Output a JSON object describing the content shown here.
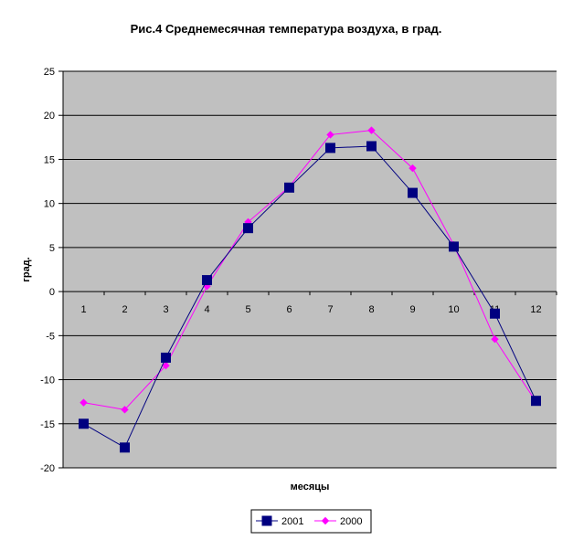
{
  "chart_data": {
    "type": "line",
    "title": "Рис.4 Среднемесячная температура воздуха, в град.",
    "xlabel": "месяцы",
    "ylabel": "град.",
    "ylim": [
      -20,
      25
    ],
    "yticks": [
      "25",
      "20",
      "15",
      "10",
      "5",
      "0",
      "-5",
      "-10",
      "-15",
      "-20"
    ],
    "categories": [
      "1",
      "2",
      "3",
      "4",
      "5",
      "6",
      "7",
      "8",
      "9",
      "10",
      "11",
      "12"
    ],
    "grid": true,
    "legend_position": "bottom",
    "plot_background": "#c0c0c0",
    "series": [
      {
        "name": "2001",
        "color": "#000080",
        "marker": "square",
        "values": [
          -15.0,
          -17.7,
          -7.5,
          1.3,
          7.2,
          11.8,
          16.3,
          16.5,
          11.2,
          5.1,
          -2.5,
          -12.4
        ]
      },
      {
        "name": "2000",
        "color": "#ff00ff",
        "marker": "diamond",
        "values": [
          -12.6,
          -13.4,
          -8.4,
          0.6,
          7.9,
          11.9,
          17.8,
          18.3,
          14.0,
          5.3,
          -5.4,
          -12.5
        ]
      }
    ]
  }
}
